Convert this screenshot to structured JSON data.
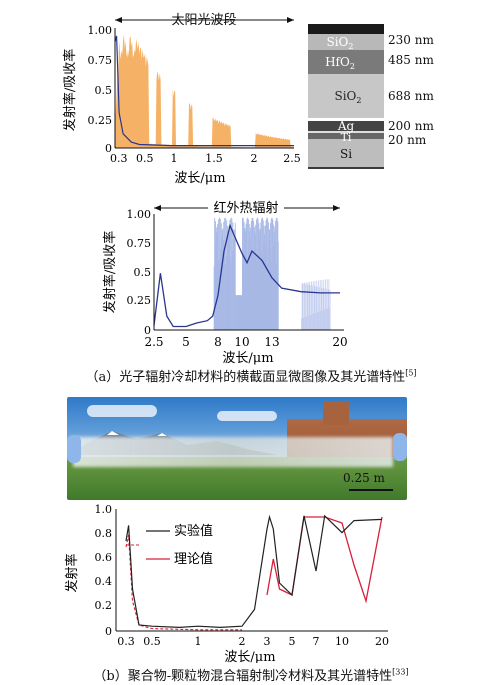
{
  "panel_a": {
    "caption": "（a）光子辐射冷却材料的横截面显微图像及其光谱特性",
    "caption_ref": "[5]",
    "chart_top": {
      "bracket_label": "太阳光波段",
      "ylabel": "发射率/吸收率",
      "xlabel": "波长/μm",
      "xticks": [
        "0.3",
        "0.5",
        "1",
        "1.5",
        "2",
        "2.5"
      ],
      "yticks": [
        "1.00",
        "0.75",
        "0.5",
        "0.25",
        "0"
      ]
    },
    "micro": {
      "layers": [
        {
          "name": "SiO2",
          "thickness": "230 nm"
        },
        {
          "name": "HfO2",
          "thickness": "485 nm"
        },
        {
          "name": "SiO2",
          "thickness": "688 nm"
        },
        {
          "name": "Ag",
          "thickness": "200 nm"
        },
        {
          "name": "Ti",
          "thickness": "20 nm"
        },
        {
          "name": "Si",
          "thickness": ""
        }
      ]
    },
    "chart_bottom": {
      "bracket_label": "红外热辐射",
      "ylabel": "发射率/吸收率",
      "xlabel": "波长/μm",
      "xticks": [
        "2.5",
        "5",
        "8",
        "10",
        "13",
        "20"
      ],
      "yticks": [
        "1.00",
        "0.75",
        "0.5",
        "0.25",
        "0"
      ]
    }
  },
  "panel_b": {
    "photo_scale": "0.25 m",
    "caption": "（b）聚合物-颗粒物混合辐射制冷材料及其光谱特性",
    "caption_ref": "[33]",
    "chart": {
      "ylabel": "发射率",
      "xlabel": "波长/μm",
      "xticks": [
        "0.3",
        "0.5",
        "1",
        "2",
        "3",
        "5",
        "7",
        "10",
        "20"
      ],
      "yticks": [
        "1.0",
        "0.8",
        "0.6",
        "0.4",
        "0.2",
        "0"
      ],
      "legend": [
        "实验值",
        "理论值"
      ]
    }
  },
  "colors": {
    "solar_fill": "#f5b266",
    "ir_fill": "#a9b9e6",
    "emit_curve": "#2a3590",
    "experimental": "#222222",
    "theory": "#d8203a"
  },
  "chart_data": [
    {
      "type": "area",
      "xlabel": "波长/μm",
      "ylabel": "发射率/吸收率",
      "xlim": [
        0.3,
        2.5
      ],
      "ylim": [
        0,
        1
      ],
      "series": [
        {
          "x": [
            0.3,
            0.32,
            0.35,
            0.4,
            0.5,
            0.6,
            1.0,
            1.5,
            2.0,
            2.5
          ],
          "values": [
            0.9,
            0.95,
            0.3,
            0.12,
            0.05,
            0.03,
            0.02,
            0.02,
            0.02,
            0.02
          ]
        }
      ]
    },
    {
      "type": "line",
      "xlabel": "波长/μm",
      "ylabel": "发射率/吸收率",
      "xlim": [
        2.5,
        20
      ],
      "ylim": [
        0,
        1
      ],
      "series": [
        {
          "x": [
            2.5,
            3,
            3.5,
            4,
            5,
            6,
            7,
            7.5,
            8,
            8.5,
            9,
            9.5,
            10,
            10.5,
            11,
            12,
            13,
            14,
            16,
            18,
            20
          ],
          "values": [
            0.04,
            0.49,
            0.12,
            0.03,
            0.03,
            0.06,
            0.08,
            0.12,
            0.3,
            0.68,
            0.9,
            0.78,
            0.66,
            0.58,
            0.68,
            0.6,
            0.45,
            0.36,
            0.33,
            0.32,
            0.32
          ]
        }
      ]
    },
    {
      "type": "line",
      "xlabel": "波长/μm",
      "ylabel": "发射率",
      "ylim": [
        0,
        1
      ],
      "series": [
        {
          "name": "实验值",
          "x": [
            0.3,
            0.32,
            0.35,
            0.4,
            0.5,
            0.8,
            1.0,
            1.5,
            2.0,
            2.5,
            3.0,
            3.2,
            3.5,
            4,
            5,
            6,
            7,
            8,
            10,
            13,
            20
          ],
          "values": [
            0.75,
            0.88,
            0.35,
            0.05,
            0.04,
            0.03,
            0.04,
            0.03,
            0.04,
            0.18,
            0.85,
            0.95,
            0.85,
            0.4,
            0.3,
            0.96,
            0.5,
            0.96,
            0.82,
            0.92,
            0.93
          ]
        },
        {
          "name": "理论值",
          "x": [
            0.3,
            0.32,
            0.35,
            0.4,
            0.5,
            1.0,
            2.0,
            3.0,
            3.5,
            4,
            5,
            6,
            7,
            8,
            10,
            13,
            16,
            20
          ],
          "values": [
            0.7,
            0.8,
            0.25,
            0.05,
            0.02,
            0.01,
            0.01,
            0.3,
            0.6,
            0.35,
            0.3,
            0.95,
            0.95,
            0.95,
            0.9,
            0.55,
            0.25,
            0.95
          ]
        }
      ]
    }
  ]
}
